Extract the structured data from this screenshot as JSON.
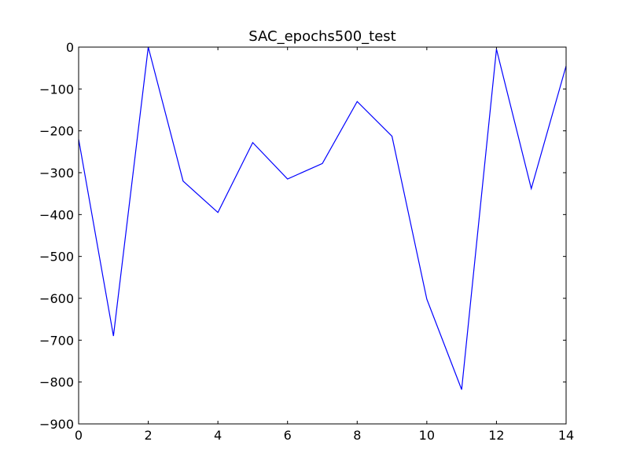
{
  "chart_data": {
    "type": "line",
    "title": "SAC_epochs500_test",
    "xlabel": "",
    "ylabel": "",
    "xlim": [
      0,
      14
    ],
    "ylim": [
      -900,
      0
    ],
    "xticks": [
      0,
      2,
      4,
      6,
      8,
      10,
      12,
      14
    ],
    "yticks": [
      0,
      -100,
      -200,
      -300,
      -400,
      -500,
      -600,
      -700,
      -800,
      -900
    ],
    "xtick_labels": [
      "0",
      "2",
      "4",
      "6",
      "8",
      "10",
      "12",
      "14"
    ],
    "ytick_labels": [
      "0",
      "−100",
      "−200",
      "−300",
      "−400",
      "−500",
      "−600",
      "−700",
      "−800",
      "−900"
    ],
    "grid": false,
    "legend": false,
    "series": [
      {
        "color": "#0000ff",
        "x": [
          0,
          1,
          2,
          3,
          4,
          5,
          6,
          7,
          8,
          9,
          10,
          11,
          12,
          13,
          14
        ],
        "y": [
          -220,
          -690,
          0,
          -320,
          -395,
          -228,
          -315,
          -278,
          -130,
          -213,
          -602,
          -818,
          -5,
          -338,
          -45
        ]
      }
    ]
  }
}
